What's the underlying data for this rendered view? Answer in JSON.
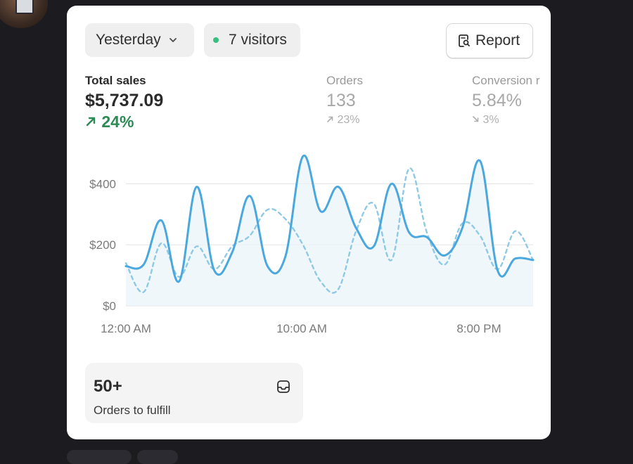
{
  "header": {
    "period_label": "Yesterday",
    "visitors_label": "7 visitors",
    "report_label": "Report"
  },
  "metrics": [
    {
      "label": "Total sales",
      "value": "$5,737.09",
      "change": "24%",
      "direction": "up"
    },
    {
      "label": "Orders",
      "value": "133",
      "change": "23%",
      "direction": "up"
    },
    {
      "label": "Conversion r",
      "value": "5.84%",
      "change": "3%",
      "direction": "down"
    }
  ],
  "chart_data": {
    "type": "line",
    "x_ticks": [
      "12:00 AM",
      "10:00 AM",
      "8:00 PM"
    ],
    "y_ticks": [
      "$0",
      "$200",
      "$400"
    ],
    "ylim": [
      0,
      500
    ],
    "x": [
      0,
      1,
      2,
      3,
      4,
      5,
      6,
      7,
      8,
      9,
      10,
      11,
      12,
      13,
      14,
      15,
      16,
      17,
      18,
      19,
      20,
      21,
      22,
      23
    ],
    "series": [
      {
        "style": "solid",
        "values": [
          130,
          135,
          280,
          80,
          390,
          115,
          175,
          360,
          130,
          160,
          490,
          310,
          390,
          255,
          195,
          400,
          240,
          225,
          165,
          255,
          475,
          115,
          155,
          150
        ]
      },
      {
        "style": "dashed",
        "values": [
          140,
          45,
          205,
          95,
          195,
          120,
          195,
          230,
          315,
          285,
          200,
          80,
          55,
          245,
          335,
          150,
          450,
          240,
          135,
          270,
          230,
          120,
          245,
          150
        ]
      }
    ],
    "colors": {
      "solid": "#4aa8de",
      "dashed": "#8fc9e3",
      "fill": "#e8f4fa",
      "grid": "#e6e6e6",
      "tick": "#7a7a7a"
    }
  },
  "fulfill": {
    "count": "50+",
    "label": "Orders to fulfill"
  }
}
